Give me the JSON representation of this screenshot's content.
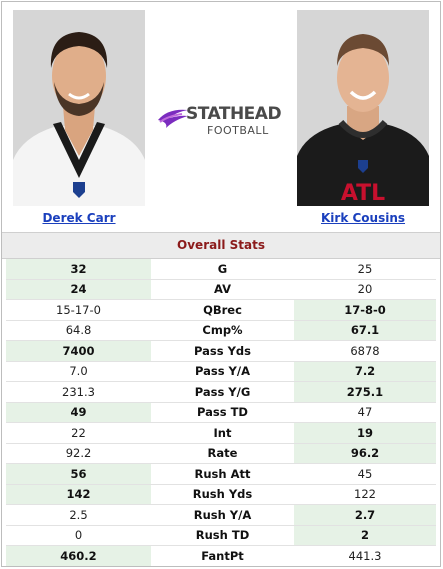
{
  "logo": {
    "word1": "STATHEAD",
    "word2": "FOOTBALL"
  },
  "players": [
    {
      "name": "Derek Carr"
    },
    {
      "name": "Kirk Cousins",
      "jersey_text": "ATL"
    }
  ],
  "section_title": "Overall Stats",
  "stats": [
    {
      "label": "G",
      "left": "32",
      "right": "25",
      "winner": "left"
    },
    {
      "label": "AV",
      "left": "24",
      "right": "20",
      "winner": "left"
    },
    {
      "label": "QBrec",
      "left": "15-17-0",
      "right": "17-8-0",
      "winner": "right"
    },
    {
      "label": "Cmp%",
      "left": "64.8",
      "right": "67.1",
      "winner": "right"
    },
    {
      "label": "Pass Yds",
      "left": "7400",
      "right": "6878",
      "winner": "left"
    },
    {
      "label": "Pass Y/A",
      "left": "7.0",
      "right": "7.2",
      "winner": "right"
    },
    {
      "label": "Pass Y/G",
      "left": "231.3",
      "right": "275.1",
      "winner": "right"
    },
    {
      "label": "Pass TD",
      "left": "49",
      "right": "47",
      "winner": "left"
    },
    {
      "label": "Int",
      "left": "22",
      "right": "19",
      "winner": "right"
    },
    {
      "label": "Rate",
      "left": "92.2",
      "right": "96.2",
      "winner": "right"
    },
    {
      "label": "Rush Att",
      "left": "56",
      "right": "45",
      "winner": "left"
    },
    {
      "label": "Rush Yds",
      "left": "142",
      "right": "122",
      "winner": "left"
    },
    {
      "label": "Rush Y/A",
      "left": "2.5",
      "right": "2.7",
      "winner": "right"
    },
    {
      "label": "Rush TD",
      "left": "0",
      "right": "2",
      "winner": "right"
    },
    {
      "label": "FantPt",
      "left": "460.2",
      "right": "441.3",
      "winner": "left"
    }
  ],
  "colors": {
    "highlight": "#e6f2e6",
    "player_link": "#1a3fbd",
    "section_title": "#8b1a1a",
    "logo_swoosh": "#7b2cbf"
  }
}
